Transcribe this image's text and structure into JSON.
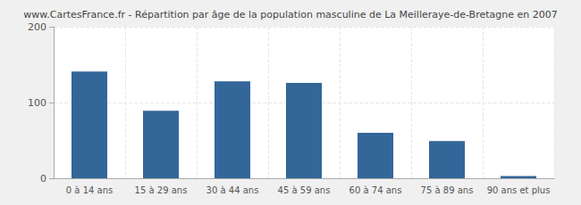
{
  "chart_data": {
    "type": "bar",
    "title": "www.CartesFrance.fr - Répartition par âge de la population masculine de La Meilleraye-de-Bretagne en 2007",
    "categories": [
      "0 à 14 ans",
      "15 à 29 ans",
      "30 à 44 ans",
      "45 à 59 ans",
      "60 à 74 ans",
      "75 à 89 ans",
      "90 ans et plus"
    ],
    "values": [
      141,
      89,
      128,
      126,
      60,
      49,
      3
    ],
    "color": "#336699",
    "ylim": [
      0,
      200
    ],
    "yticks": [
      0,
      100,
      200
    ],
    "grid": true
  }
}
